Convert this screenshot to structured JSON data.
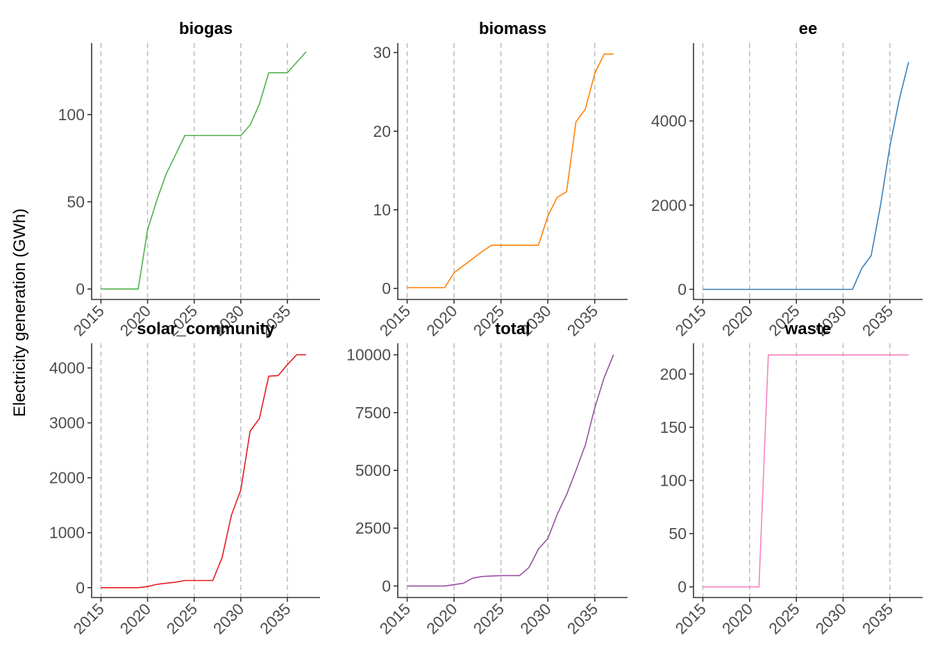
{
  "figure": {
    "ylabel": "Electricity generation (GWh)",
    "vlines": [
      2015,
      2020,
      2025,
      2030,
      2035
    ]
  },
  "chart_data": [
    {
      "type": "line",
      "title": "biogas",
      "color": "#4daf4a",
      "xlim": [
        2014,
        2038.5
      ],
      "ylim": [
        -6,
        141
      ],
      "xticks": [
        2015,
        2020,
        2025,
        2030,
        2035
      ],
      "xtick_labels": [
        "2015",
        "2020",
        "2025",
        "2030",
        "2035"
      ],
      "yticks": [
        0,
        50,
        100
      ],
      "ytick_labels": [
        "0",
        "50",
        "100"
      ],
      "x": [
        2015,
        2016,
        2017,
        2018,
        2019,
        2020,
        2021,
        2022,
        2023,
        2024,
        2025,
        2026,
        2027,
        2028,
        2029,
        2030,
        2031,
        2032,
        2033,
        2034,
        2035,
        2036,
        2037
      ],
      "y": [
        0,
        0,
        0,
        0,
        0,
        34,
        51,
        66,
        77,
        88,
        88,
        88,
        88,
        88,
        88,
        88,
        94,
        106,
        124,
        124,
        124,
        130,
        136
      ]
    },
    {
      "type": "line",
      "title": "biomass",
      "color": "#ff7f00",
      "xlim": [
        2014,
        2038.5
      ],
      "ylim": [
        -1.4,
        31.2
      ],
      "xticks": [
        2015,
        2020,
        2025,
        2030,
        2035
      ],
      "xtick_labels": [
        "2015",
        "2020",
        "2025",
        "2030",
        "2035"
      ],
      "yticks": [
        0,
        10,
        20,
        30
      ],
      "ytick_labels": [
        "0",
        "10",
        "20",
        "30"
      ],
      "x": [
        2015,
        2016,
        2017,
        2018,
        2019,
        2020,
        2021,
        2022,
        2023,
        2024,
        2025,
        2026,
        2027,
        2028,
        2029,
        2030,
        2031,
        2032,
        2033,
        2034,
        2035,
        2036,
        2037
      ],
      "y": [
        0.1,
        0.1,
        0.1,
        0.1,
        0.1,
        2,
        2.9,
        3.8,
        4.7,
        5.5,
        5.5,
        5.5,
        5.5,
        5.5,
        5.5,
        9.2,
        11.6,
        12.3,
        21.2,
        22.8,
        27.3,
        29.8,
        29.8
      ]
    },
    {
      "type": "line",
      "title": "ee",
      "color": "#377eb8",
      "xlim": [
        2014,
        2038.5
      ],
      "ylim": [
        -240,
        5850
      ],
      "xticks": [
        2015,
        2020,
        2025,
        2030,
        2035
      ],
      "xtick_labels": [
        "2015",
        "2020",
        "2025",
        "2030",
        "2035"
      ],
      "yticks": [
        0,
        2000,
        4000
      ],
      "ytick_labels": [
        "0",
        "2000",
        "4000"
      ],
      "x": [
        2015,
        2016,
        2017,
        2018,
        2019,
        2020,
        2021,
        2022,
        2023,
        2024,
        2025,
        2026,
        2027,
        2028,
        2029,
        2030,
        2031,
        2032,
        2033,
        2034,
        2035,
        2036,
        2037
      ],
      "y": [
        0,
        0,
        0,
        0,
        0,
        0,
        0,
        0,
        0,
        0,
        0,
        0,
        0,
        0,
        0,
        0,
        0,
        500,
        800,
        2000,
        3400,
        4500,
        5400
      ]
    },
    {
      "type": "line",
      "title": "solar_community",
      "color": "#e41a1c",
      "xlim": [
        2014,
        2038.5
      ],
      "ylim": [
        -180,
        4450
      ],
      "xticks": [
        2015,
        2020,
        2025,
        2030,
        2035
      ],
      "xtick_labels": [
        "2015",
        "2020",
        "2025",
        "2030",
        "2035"
      ],
      "yticks": [
        0,
        1000,
        2000,
        3000,
        4000
      ],
      "ytick_labels": [
        "0",
        "1000",
        "2000",
        "3000",
        "4000"
      ],
      "x": [
        2015,
        2016,
        2017,
        2018,
        2019,
        2020,
        2021,
        2022,
        2023,
        2024,
        2025,
        2026,
        2027,
        2028,
        2029,
        2030,
        2031,
        2032,
        2033,
        2034,
        2035,
        2036,
        2037
      ],
      "y": [
        0,
        0,
        0,
        0,
        0,
        20,
        60,
        80,
        100,
        130,
        130,
        130,
        130,
        550,
        1320,
        1780,
        2850,
        3080,
        3850,
        3860,
        4060,
        4240,
        4240
      ]
    },
    {
      "type": "line",
      "title": "total",
      "color": "#984ea3",
      "xlim": [
        2014,
        2038.5
      ],
      "ylim": [
        -500,
        10500
      ],
      "xticks": [
        2015,
        2020,
        2025,
        2030,
        2035
      ],
      "xtick_labels": [
        "2015",
        "2020",
        "2025",
        "2030",
        "2035"
      ],
      "yticks": [
        0,
        2500,
        5000,
        7500,
        10000
      ],
      "ytick_labels": [
        "0",
        "2500",
        "5000",
        "7500",
        "10000"
      ],
      "x": [
        2015,
        2016,
        2017,
        2018,
        2019,
        2020,
        2021,
        2022,
        2023,
        2024,
        2025,
        2026,
        2027,
        2028,
        2029,
        2030,
        2031,
        2032,
        2033,
        2034,
        2035,
        2036,
        2037
      ],
      "y": [
        0,
        0,
        0,
        0,
        0,
        60,
        120,
        340,
        410,
        430,
        450,
        450,
        450,
        800,
        1600,
        2050,
        3100,
        3950,
        5000,
        6100,
        7700,
        9000,
        10000
      ]
    },
    {
      "type": "line",
      "title": "waste",
      "color": "#f781bf",
      "xlim": [
        2014,
        2038.5
      ],
      "ylim": [
        -10,
        229
      ],
      "xticks": [
        2015,
        2020,
        2025,
        2030,
        2035
      ],
      "xtick_labels": [
        "2015",
        "2020",
        "2025",
        "2030",
        "2035"
      ],
      "yticks": [
        0,
        50,
        100,
        150,
        200
      ],
      "ytick_labels": [
        "0",
        "50",
        "100",
        "150",
        "200"
      ],
      "x": [
        2015,
        2016,
        2017,
        2018,
        2019,
        2020,
        2021,
        2022,
        2023,
        2024,
        2025,
        2026,
        2027,
        2028,
        2029,
        2030,
        2031,
        2032,
        2033,
        2034,
        2035,
        2036,
        2037
      ],
      "y": [
        0,
        0,
        0,
        0,
        0,
        0,
        0,
        218,
        218,
        218,
        218,
        218,
        218,
        218,
        218,
        218,
        218,
        218,
        218,
        218,
        218,
        218,
        218
      ]
    }
  ]
}
